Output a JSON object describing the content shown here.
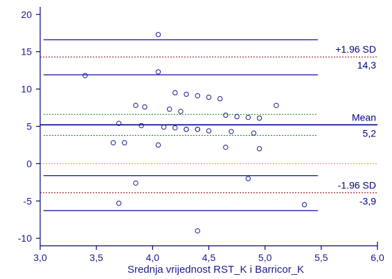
{
  "chart_data": {
    "type": "scatter",
    "title": "",
    "xlabel": "Srednja vrijednost RST_K i Barricor_K",
    "ylabel": "",
    "xlim": [
      3.0,
      6.0
    ],
    "ylim": [
      -11,
      21
    ],
    "x_ticks": [
      3.0,
      3.5,
      4.0,
      4.5,
      5.0,
      5.5,
      6.0
    ],
    "x_tick_labels": [
      "3,0",
      "3,5",
      "4,0",
      "4,5",
      "5,0",
      "5,5",
      "6,0"
    ],
    "y_ticks": [
      -10,
      -5,
      0,
      5,
      10,
      15,
      20
    ],
    "y_tick_labels": [
      "-10",
      "-5",
      "0",
      "5",
      "10",
      "15",
      "20"
    ],
    "grid": false,
    "colors": {
      "axis": "#000080",
      "points": "#1a1a8c",
      "mean_line": "#00008b",
      "ci_mean": "#008000",
      "ci_limits": "#1f1fa8",
      "loa_line": "#8b0000",
      "zero_line": "#ff8c00"
    },
    "series": [
      {
        "points": [
          [
            3.4,
            11.8
          ],
          [
            3.65,
            2.8
          ],
          [
            3.7,
            5.4
          ],
          [
            3.7,
            -5.3
          ],
          [
            3.75,
            2.8
          ],
          [
            3.85,
            7.8
          ],
          [
            3.85,
            -2.6
          ],
          [
            3.9,
            5.1
          ],
          [
            3.93,
            7.6
          ],
          [
            4.05,
            17.3
          ],
          [
            4.05,
            12.3
          ],
          [
            4.05,
            2.5
          ],
          [
            4.1,
            4.9
          ],
          [
            4.15,
            7.3
          ],
          [
            4.2,
            9.5
          ],
          [
            4.2,
            4.8
          ],
          [
            4.25,
            7.0
          ],
          [
            4.3,
            9.3
          ],
          [
            4.3,
            4.6
          ],
          [
            4.3,
            4.6
          ],
          [
            4.4,
            9.1
          ],
          [
            4.4,
            4.6
          ],
          [
            4.4,
            4.6
          ],
          [
            4.4,
            -9.0
          ],
          [
            4.5,
            8.9
          ],
          [
            4.5,
            4.4
          ],
          [
            4.6,
            8.7
          ],
          [
            4.65,
            6.5
          ],
          [
            4.65,
            2.2
          ],
          [
            4.7,
            4.3
          ],
          [
            4.75,
            6.3
          ],
          [
            4.85,
            6.2
          ],
          [
            4.85,
            -2.0
          ],
          [
            4.9,
            4.1
          ],
          [
            4.95,
            6.1
          ],
          [
            4.95,
            2.0
          ],
          [
            5.1,
            7.8
          ],
          [
            5.35,
            -5.5
          ]
        ]
      }
    ],
    "reference_lines": {
      "upper_loa": {
        "label": "+1.96 SD",
        "value_label": "14,3",
        "value": 14.3,
        "ci": [
          11.9,
          16.6
        ]
      },
      "mean": {
        "label": "Mean",
        "value_label": "5,2",
        "value": 5.2,
        "ci": [
          3.8,
          6.6
        ]
      },
      "lower_loa": {
        "label": "-1.96 SD",
        "value_label": "-3,9",
        "value": -3.9,
        "ci": [
          -6.3,
          -1.6
        ]
      },
      "zero": 0
    },
    "line_extent_x": [
      3.0,
      5.47
    ],
    "ci_extent_x": [
      3.03,
      5.47
    ]
  }
}
